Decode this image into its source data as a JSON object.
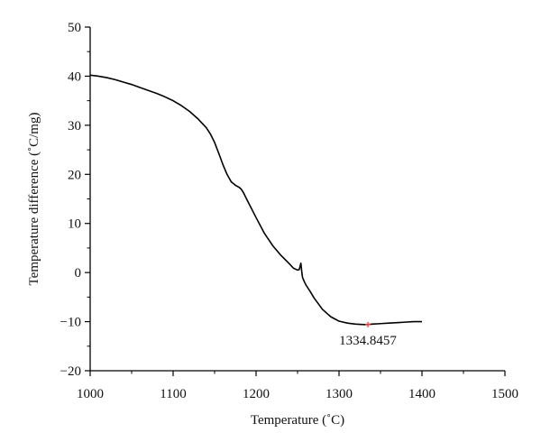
{
  "chart_data": {
    "type": "line",
    "title": "",
    "xlabel": "Temperature (˚C)",
    "ylabel": "Temperature difference (˚C/mg)",
    "xlim": [
      1000,
      1500
    ],
    "ylim": [
      -20,
      50
    ],
    "x_ticks": [
      1000,
      1100,
      1200,
      1300,
      1400,
      1500
    ],
    "y_ticks": [
      -20,
      -10,
      0,
      10,
      20,
      30,
      40,
      50
    ],
    "x_tick_labels": [
      "1000",
      "1100",
      "1200",
      "1300",
      "1400",
      "1500"
    ],
    "y_tick_labels": [
      "−20",
      "−10",
      "0",
      "10",
      "20",
      "30",
      "40",
      "50"
    ],
    "grid": false,
    "series": [
      {
        "color": "#000000",
        "x": [
          1000,
          1010,
          1020,
          1030,
          1040,
          1050,
          1060,
          1070,
          1080,
          1090,
          1100,
          1110,
          1120,
          1130,
          1140,
          1145,
          1150,
          1155,
          1160,
          1165,
          1170,
          1175,
          1180,
          1182,
          1185,
          1190,
          1200,
          1210,
          1220,
          1230,
          1240,
          1245,
          1250,
          1252,
          1254,
          1255,
          1256,
          1258,
          1260,
          1265,
          1270,
          1280,
          1290,
          1300,
          1310,
          1320,
          1330,
          1334.8457,
          1340,
          1350,
          1360,
          1370,
          1380,
          1390,
          1400
        ],
        "y": [
          40.2,
          40.0,
          39.7,
          39.3,
          38.8,
          38.3,
          37.7,
          37.1,
          36.5,
          35.8,
          35.0,
          34.0,
          32.8,
          31.3,
          29.5,
          28.2,
          26.5,
          24.3,
          22.0,
          20.0,
          18.5,
          17.8,
          17.3,
          17.0,
          16.2,
          14.5,
          11.2,
          8.0,
          5.5,
          3.5,
          1.8,
          0.9,
          0.5,
          0.6,
          1.9,
          0.3,
          -1.0,
          -1.8,
          -2.5,
          -3.8,
          -5.2,
          -7.5,
          -9.0,
          -9.9,
          -10.3,
          -10.5,
          -10.6,
          -10.6,
          -10.5,
          -10.4,
          -10.3,
          -10.2,
          -10.1,
          -10.0,
          -10.0
        ]
      }
    ],
    "marker": {
      "x": 1334.8457,
      "y": -10.6,
      "color": "#ff3b3b",
      "label": "1334.8457"
    }
  }
}
